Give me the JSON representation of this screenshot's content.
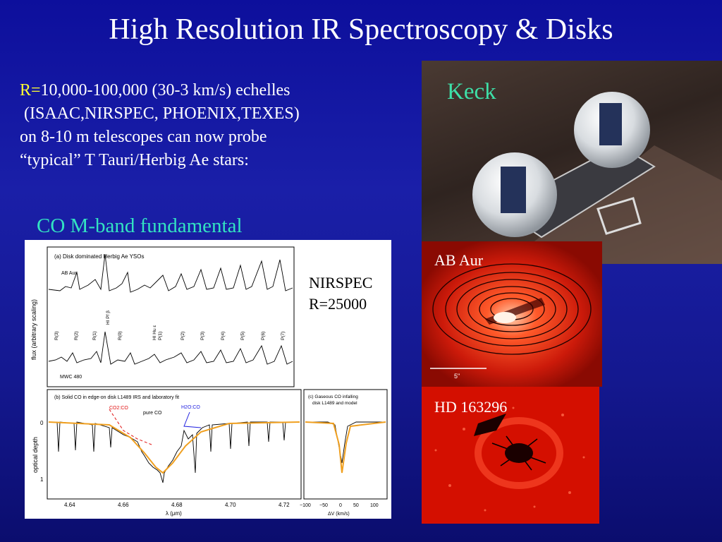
{
  "title": "High Resolution IR Spectroscopy & Disks",
  "intro": {
    "resolution": "R=",
    "line1_rest": "10,000-100,000 (30-3 km/s) echelles",
    "line2": " (ISAAC,NIRSPEC, PHOENIX,TEXES)",
    "line3": "on 8-10 m telescopes can now probe",
    "line4": "“typical” T Tauri/Herbig Ae stars:"
  },
  "co_heading": "CO M-band fundamental",
  "photos": {
    "keck_label": "Keck",
    "ab_aur_label": "AB Aur",
    "ab_aur_scale": "5\"",
    "hd_label": "HD 163296"
  },
  "nirspec_note": {
    "line1": "NIRSPEC",
    "line2": "R=25000"
  },
  "figure": {
    "panel_a": {
      "title": "(a) Disk dominated Herbig Ae YSOs",
      "ylabel": "flux (arbitrary scaling)",
      "star1": "AB Aur",
      "star2": "MWC 480",
      "lines": [
        "R(3)",
        "R(2)",
        "R(1)",
        "HI Pf β",
        "R(0)",
        "HI Hu ε",
        "P(1)",
        "P(2)",
        "P(3)",
        "P(4)",
        "P(5)",
        "P(6)",
        "P(7)"
      ]
    },
    "panel_b": {
      "title": "(b) Solid CO in edge-on disk L1489 IRS and laboratory fit",
      "ylabel": "optical depth",
      "xlabel": "λ (μm)",
      "co2co": "CO2:CO",
      "pureco": "pure CO",
      "h2oco": "H2O:CO",
      "yticks": [
        "0",
        "1"
      ],
      "xticks": [
        "4.64",
        "4.66",
        "4.68",
        "4.70",
        "4.72"
      ]
    },
    "panel_c": {
      "title1": "(c) Gaseous CO infalling",
      "title2": "disk L1489 and model",
      "xlabel": "ΔV (km/s)",
      "xticks": [
        "−100",
        "−50",
        "0",
        "50",
        "100"
      ]
    },
    "colors": {
      "fit": "#f0a020",
      "co2co": "#e01010",
      "h2oco": "#2020e0"
    }
  }
}
